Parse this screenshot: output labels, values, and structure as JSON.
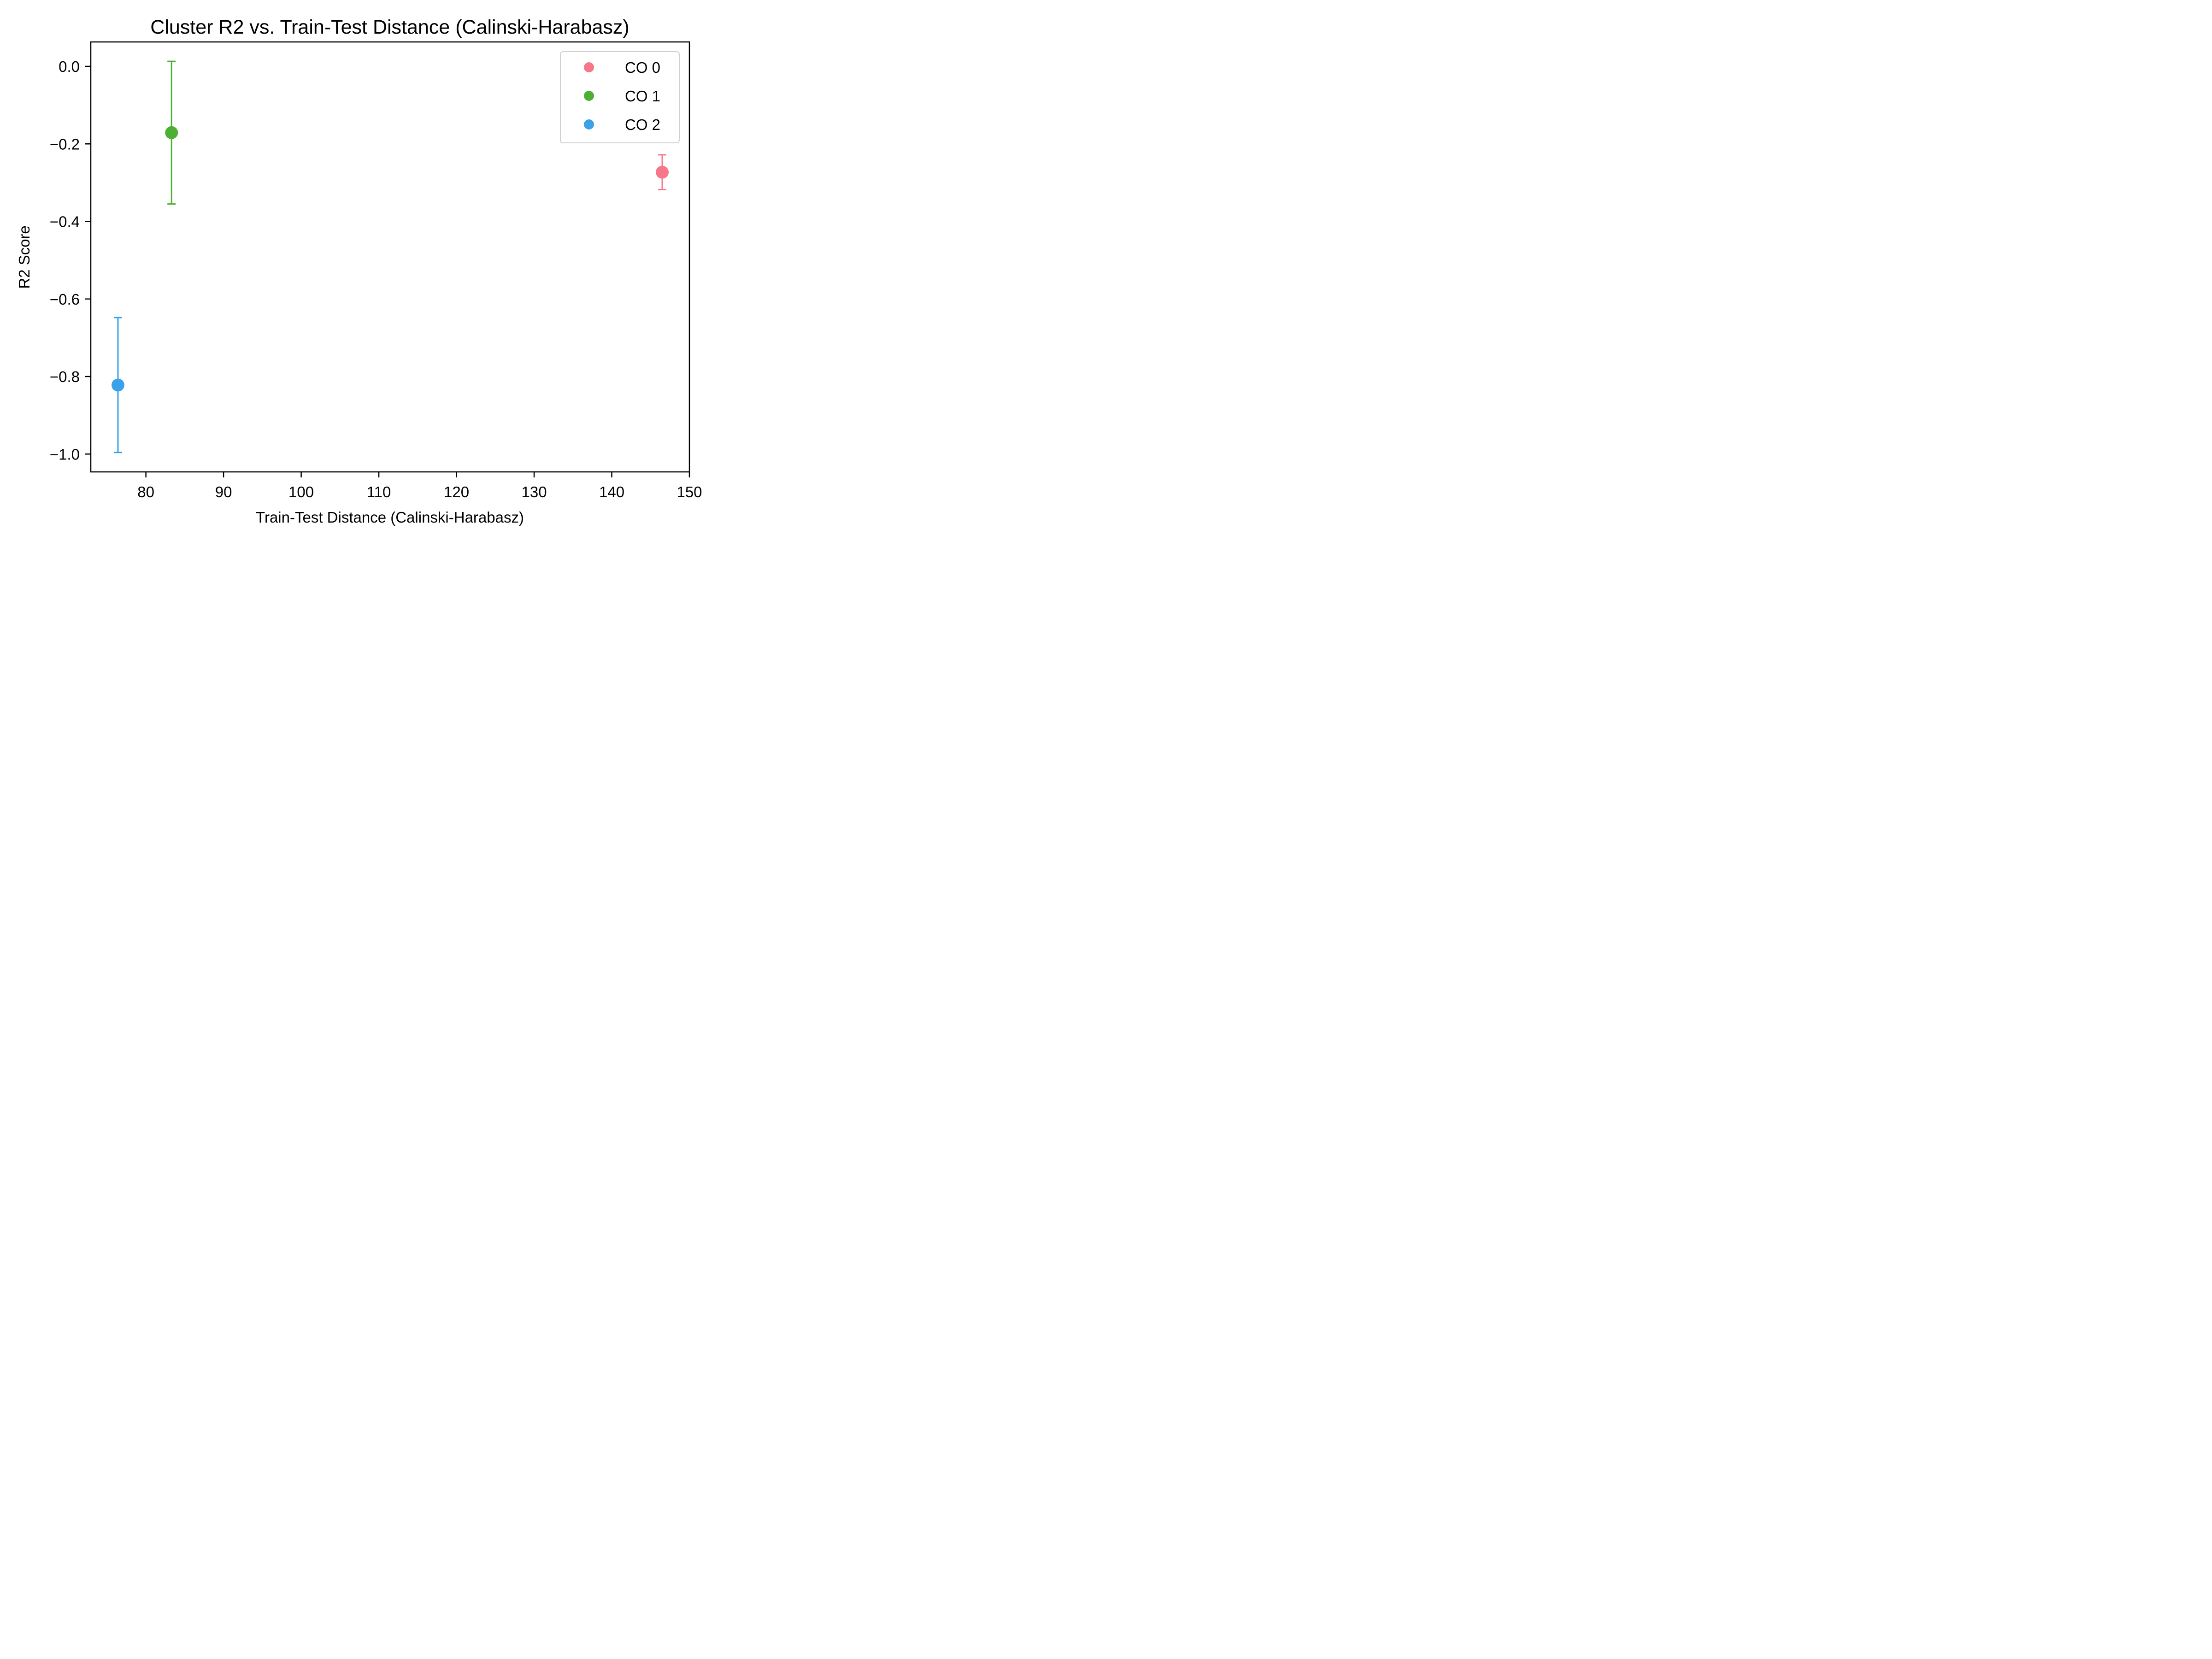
{
  "chart_data": {
    "type": "scatter",
    "title": "Cluster R2 vs. Train-Test Distance (Calinski-Harabasz)",
    "xlabel": "Train-Test Distance (Calinski-Harabasz)",
    "ylabel": "R2 Score",
    "xlim": [
      72.9,
      150
    ],
    "ylim": [
      -1.046,
      0.063
    ],
    "x_ticks": [
      80,
      90,
      100,
      110,
      120,
      130,
      140,
      150
    ],
    "y_ticks": [
      0.0,
      -0.2,
      -0.4,
      -0.6,
      -0.8,
      -1.0
    ],
    "y_tick_labels": [
      "0.0",
      "−0.2",
      "−0.4",
      "−0.6",
      "−0.8",
      "−1.0"
    ],
    "grid": false,
    "legend_position": "top-right",
    "series": [
      {
        "name": "CO 0",
        "color": "#f7768a",
        "x": 146.5,
        "y": -0.273,
        "err_low": -0.318,
        "err_high": -0.228
      },
      {
        "name": "CO 1",
        "color": "#4daf34",
        "x": 83.3,
        "y": -0.171,
        "err_low": -0.355,
        "err_high": 0.013
      },
      {
        "name": "CO 2",
        "color": "#3ba2ea",
        "x": 76.4,
        "y": -0.822,
        "err_low": -0.996,
        "err_high": -0.648
      }
    ]
  }
}
